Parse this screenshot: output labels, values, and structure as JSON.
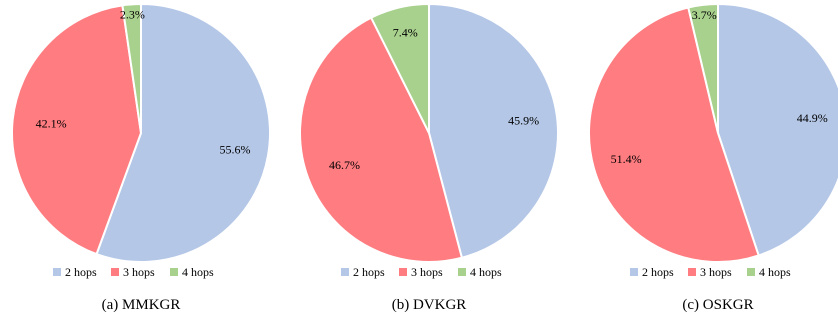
{
  "chart_data": [
    {
      "type": "pie",
      "caption": "(a)  MMKGR",
      "categories": [
        "2 hops",
        "3 hops",
        "4 hops"
      ],
      "values": [
        55.6,
        42.1,
        2.3
      ],
      "labels": [
        "55.6%",
        "42.1%",
        "2.3%"
      ],
      "colors": [
        "#b4c7e7",
        "#ff7c80",
        "#a9d18e"
      ],
      "legend_position": "bottom"
    },
    {
      "type": "pie",
      "caption": "(b)  DVKGR",
      "categories": [
        "2 hops",
        "3 hops",
        "4 hops"
      ],
      "values": [
        45.9,
        46.7,
        7.4
      ],
      "labels": [
        "45.9%",
        "46.7%",
        "7.4%"
      ],
      "colors": [
        "#b4c7e7",
        "#ff7c80",
        "#a9d18e"
      ],
      "legend_position": "bottom"
    },
    {
      "type": "pie",
      "caption": "(c)  OSKGR",
      "categories": [
        "2 hops",
        "3 hops",
        "4 hops"
      ],
      "values": [
        44.9,
        51.4,
        3.7
      ],
      "labels": [
        "44.9%",
        "51.4%",
        "3.7%"
      ],
      "colors": [
        "#b4c7e7",
        "#ff7c80",
        "#a9d18e"
      ],
      "legend_position": "bottom"
    }
  ]
}
